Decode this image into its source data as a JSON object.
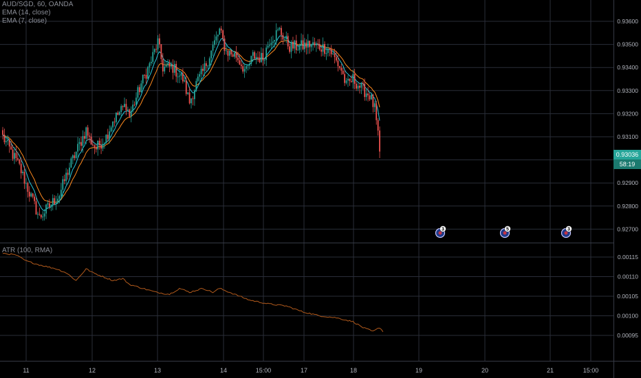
{
  "legend": {
    "symbol": "AUD/SGD, 60, OANDA",
    "ema14": "EMA (14, close)",
    "ema7": "EMA (7, close)",
    "atr": "ATR (100, RMA)"
  },
  "colors": {
    "background": "#000000",
    "grid": "#2a2e39",
    "candle_up": "#26a69a",
    "candle_down": "#ef5350",
    "ema14": "#ff8a1f",
    "ema7": "#26c6da",
    "atr": "#b25a1c",
    "last_price_bg": "#26a69a",
    "event_marker": "#1e3a8a"
  },
  "price_tag": {
    "last_price": "0.93036",
    "countdown": "58:19"
  },
  "x_axis": {
    "labels": [
      "11",
      "12",
      "13",
      "14",
      "15:00",
      "17",
      "18",
      "19",
      "20",
      "21",
      "15:00"
    ]
  },
  "events": [
    {
      "icon": "australia-flag-icon",
      "count": "3"
    },
    {
      "icon": "australia-flag-icon",
      "count": "5"
    },
    {
      "icon": "australia-flag-icon",
      "count": "3"
    }
  ],
  "chart_data": [
    {
      "type": "candlestick",
      "title": "AUD/SGD, 60, OANDA",
      "series": [
        {
          "name": "EMA (14, close)"
        },
        {
          "name": "EMA (7, close)"
        }
      ],
      "y_tick_labels": [
        "0.93600",
        "0.93500",
        "0.93400",
        "0.93300",
        "0.93200",
        "0.93100",
        "0.93000",
        "0.92900",
        "0.92800",
        "0.92700"
      ],
      "ylim": [
        0.9265,
        0.9365
      ],
      "grid": true,
      "close_path": [
        [
          0,
          0.931
        ],
        [
          10,
          0.9297
        ],
        [
          18,
          0.9282
        ],
        [
          22,
          0.9275
        ],
        [
          34,
          0.9285
        ],
        [
          40,
          0.9297
        ],
        [
          50,
          0.9313
        ],
        [
          52,
          0.9309
        ],
        [
          56,
          0.9305
        ],
        [
          62,
          0.931
        ],
        [
          66,
          0.9317
        ],
        [
          74,
          0.9324
        ],
        [
          76,
          0.9319
        ],
        [
          83,
          0.9333
        ],
        [
          88,
          0.9341
        ],
        [
          93,
          0.9351
        ],
        [
          96,
          0.934
        ],
        [
          102,
          0.934
        ],
        [
          108,
          0.9335
        ],
        [
          112,
          0.9325
        ],
        [
          116,
          0.9333
        ],
        [
          120,
          0.9338
        ],
        [
          126,
          0.9349
        ],
        [
          130,
          0.9356
        ],
        [
          134,
          0.9347
        ],
        [
          140,
          0.9345
        ],
        [
          146,
          0.9338
        ],
        [
          150,
          0.9345
        ],
        [
          156,
          0.9344
        ],
        [
          160,
          0.9352
        ],
        [
          166,
          0.9356
        ],
        [
          172,
          0.9349
        ],
        [
          178,
          0.9349
        ],
        [
          184,
          0.935
        ],
        [
          190,
          0.9349
        ],
        [
          196,
          0.9348
        ],
        [
          198,
          0.9345
        ],
        [
          203,
          0.9339
        ],
        [
          206,
          0.9332
        ],
        [
          210,
          0.9335
        ],
        [
          215,
          0.9331
        ],
        [
          220,
          0.9328
        ],
        [
          223,
          0.9322
        ],
        [
          225,
          0.931
        ],
        [
          226,
          0.9304
        ]
      ],
      "last_price": 0.93036
    },
    {
      "type": "line",
      "title": "ATR (100, RMA)",
      "series": [
        {
          "name": "ATR (100, RMA)"
        }
      ],
      "y_tick_labels": [
        "0.00115",
        "0.00110",
        "0.00105",
        "0.00100",
        "0.00095"
      ],
      "ylim": [
        0.000947,
        0.001185
      ],
      "values_path": [
        [
          0,
          0.00116
        ],
        [
          8,
          0.001155
        ],
        [
          14,
          0.00114
        ],
        [
          22,
          0.00113
        ],
        [
          32,
          0.00112
        ],
        [
          38,
          0.00111
        ],
        [
          44,
          0.00109
        ],
        [
          50,
          0.00112
        ],
        [
          54,
          0.00111
        ],
        [
          60,
          0.0011
        ],
        [
          66,
          0.00109
        ],
        [
          72,
          0.001095
        ],
        [
          76,
          0.00108
        ],
        [
          84,
          0.00107
        ],
        [
          92,
          0.00106
        ],
        [
          100,
          0.001055
        ],
        [
          106,
          0.00107
        ],
        [
          112,
          0.00106
        ],
        [
          120,
          0.00107
        ],
        [
          126,
          0.00106
        ],
        [
          130,
          0.00107
        ],
        [
          136,
          0.00106
        ],
        [
          142,
          0.00105
        ],
        [
          148,
          0.00104
        ],
        [
          160,
          0.00103
        ],
        [
          170,
          0.001025
        ],
        [
          180,
          0.00101
        ],
        [
          190,
          0.001
        ],
        [
          200,
          0.000995
        ],
        [
          210,
          0.000985
        ],
        [
          216,
          0.00097
        ],
        [
          222,
          0.00096
        ],
        [
          226,
          0.00097
        ],
        [
          228,
          0.00096
        ]
      ]
    }
  ]
}
